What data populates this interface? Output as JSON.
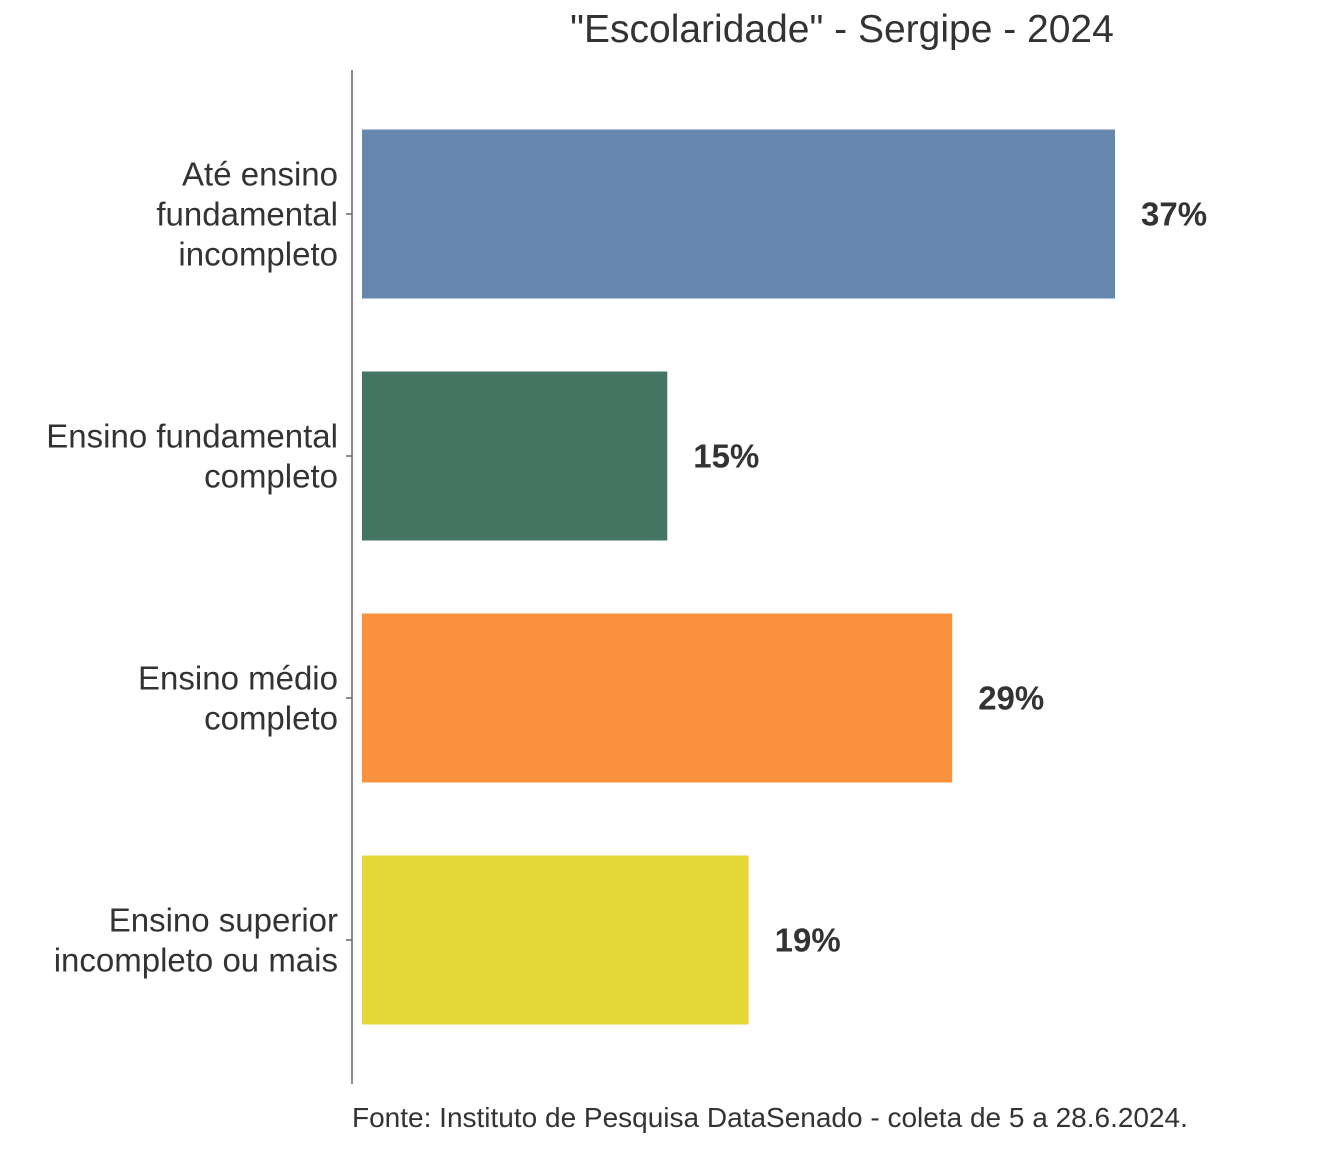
{
  "chart_data": {
    "type": "bar",
    "orientation": "horizontal",
    "title": "\"Escolaridade\" - Sergipe - 2024",
    "categories": [
      [
        "Até ensino",
        "fundamental",
        "incompleto"
      ],
      [
        "Ensino fundamental",
        "completo"
      ],
      [
        "Ensino médio",
        "completo"
      ],
      [
        "Ensino superior",
        "incompleto ou mais"
      ]
    ],
    "values": [
      37,
      15,
      29,
      19
    ],
    "value_labels": [
      "37%",
      "15%",
      "29%",
      "19%"
    ],
    "colors": [
      "#6688b0",
      "#447563",
      "#fa913d",
      "#e5d836"
    ],
    "xlim": [
      0,
      37
    ],
    "xaxis_visible": false,
    "grid": false,
    "legend": "none",
    "source": "Fonte: Instituto de Pesquisa DataSenado - coleta de 5 a 28.6.2024."
  }
}
